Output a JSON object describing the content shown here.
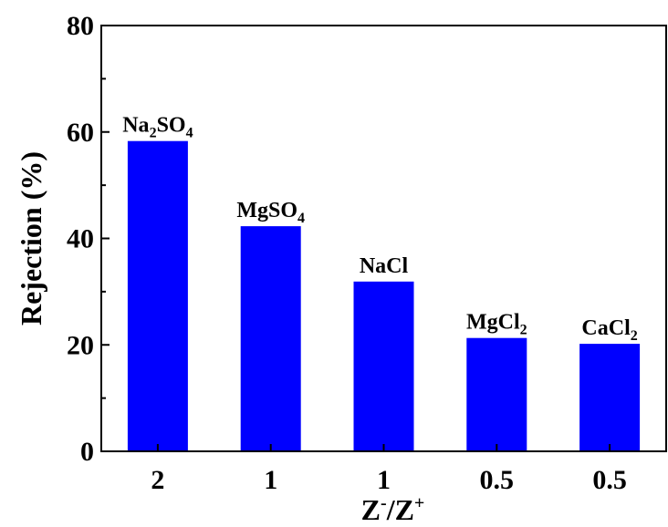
{
  "chart_data": {
    "type": "bar",
    "categories": [
      "2",
      "1",
      "1",
      "0.5",
      "0.5"
    ],
    "bar_labels": [
      {
        "main": "Na",
        "sub1": "2",
        "mid": "SO",
        "sub2": "4"
      },
      {
        "main": "MgSO",
        "sub1": "4",
        "mid": "",
        "sub2": ""
      },
      {
        "main": "NaCl",
        "sub1": "",
        "mid": "",
        "sub2": ""
      },
      {
        "main": "MgCl",
        "sub1": "2",
        "mid": "",
        "sub2": ""
      },
      {
        "main": "CaCl",
        "sub1": "2",
        "mid": "",
        "sub2": ""
      }
    ],
    "values": [
      58.3,
      42.3,
      31.9,
      21.3,
      20.2
    ],
    "ylim": [
      0,
      80
    ],
    "yticks": [
      "0",
      "20",
      "40",
      "60",
      "80"
    ],
    "ylabel": "Rejection (%)",
    "xlabel": {
      "z1": "Z",
      "sup1": "-",
      "slash": "/",
      "z2": "Z",
      "sup2": "+"
    },
    "bar_color": "#0000ff",
    "grid": false,
    "legend": "none"
  }
}
